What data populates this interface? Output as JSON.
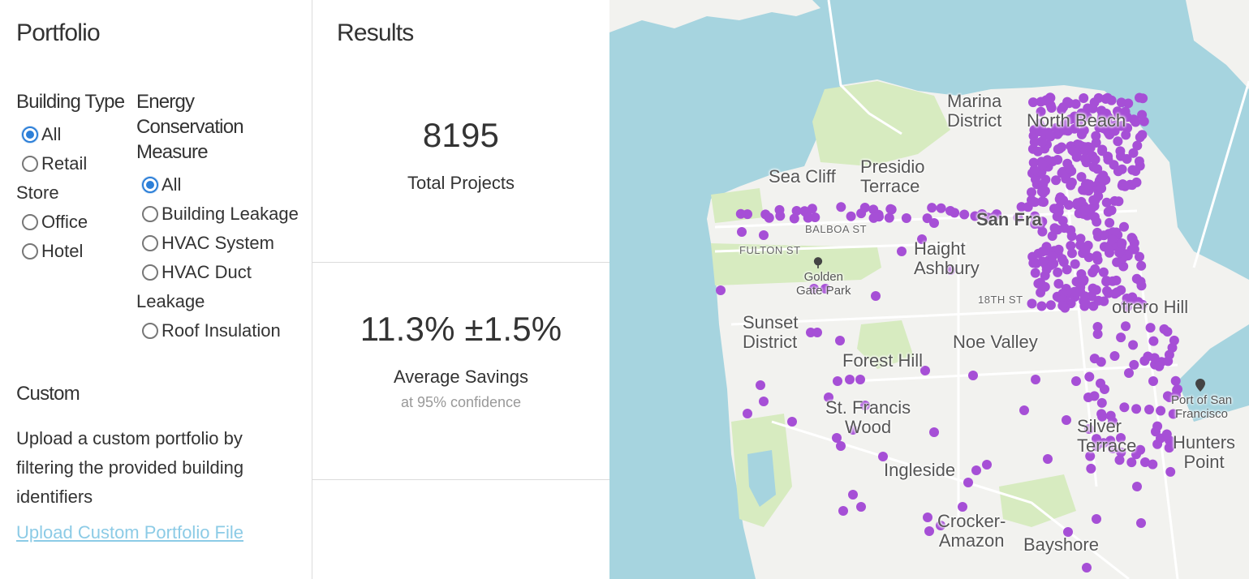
{
  "portfolio": {
    "title": "Portfolio",
    "building_type": {
      "heading": "Building Type",
      "options": [
        {
          "label": "All",
          "checked": true
        },
        {
          "label": "Retail Store",
          "checked": false
        },
        {
          "label": "Office",
          "checked": false
        },
        {
          "label": "Hotel",
          "checked": false
        }
      ]
    },
    "ecm": {
      "heading": "Energy Conservation Measure",
      "options": [
        {
          "label": "All",
          "checked": true
        },
        {
          "label": "Building Leakage",
          "checked": false
        },
        {
          "label": "HVAC System",
          "checked": false
        },
        {
          "label": "HVAC Duct Leakage",
          "checked": false
        },
        {
          "label": "Roof Insulation",
          "checked": false
        }
      ]
    },
    "custom": {
      "heading": "Custom",
      "description": "Upload a custom portfolio by filtering the provided building identifiers",
      "upload_link": "Upload Custom Portfolio File"
    }
  },
  "results": {
    "title": "Results",
    "total_projects": "8195",
    "total_projects_label": "Total Projects",
    "average_savings": "11.3% ±1.5%",
    "average_savings_label": "Average Savings",
    "confidence_note": "at 95% confidence"
  },
  "map": {
    "point_color": "#a64fd6",
    "water_color": "#a6d4df",
    "land_color": "#f2f2ef",
    "park_color": "#d7ebc0",
    "labels": {
      "marina_1": "Marina",
      "marina_2": "District",
      "north_beach": "North Beach",
      "sea_cliff": "Sea Cliff",
      "presidio_1": "Presidio",
      "presidio_2": "Terrace",
      "san_francisco": "San Fra",
      "balboa_st": "BALBOA ST",
      "fulton_st": "FULTON ST",
      "haight_1": "Haight",
      "haight_2": "Ashbury",
      "golden_gate_1": "Golden",
      "golden_gate_2": "Gate Park",
      "eighteenth_st": "18TH ST",
      "potrero": "otrero Hill",
      "sunset_1": "Sunset",
      "sunset_2": "District",
      "noe_valley": "Noe Valley",
      "forest_hill": "Forest Hill",
      "port_1": "Port of San",
      "port_2": "Francisco",
      "st_francis_1": "St. Francis",
      "st_francis_2": "Wood",
      "silver_1": "Silver",
      "silver_2": "Terrace",
      "hunters_1": "Hunters",
      "hunters_2": "Point",
      "ingleside": "Ingleside",
      "crocker_1": "Crocker-",
      "crocker_2": "Amazon",
      "bayshore": "Bayshore"
    },
    "icons": [
      "tree-icon",
      "location-pin-icon"
    ]
  }
}
